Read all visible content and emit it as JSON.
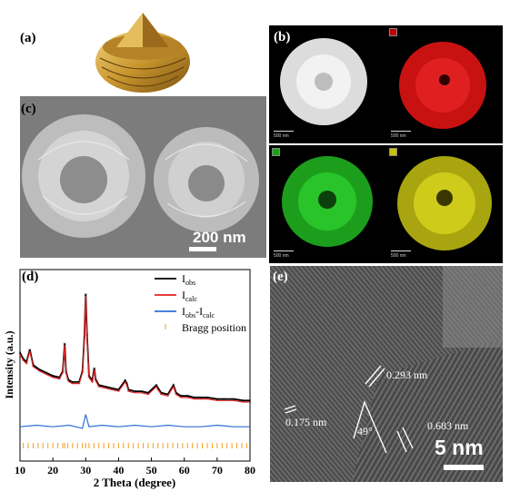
{
  "panels": {
    "a": {
      "label": "(a)"
    },
    "b": {
      "label": "(b)",
      "maps": [
        {
          "tag_color": "#c00000",
          "color": "#d81616",
          "scale": "500 nm"
        },
        {
          "tag_color": "#c00000",
          "color": "#d81616",
          "scale": "500 nm"
        },
        {
          "tag_color": "#14a614",
          "color": "#22b822",
          "scale": "500 nm"
        },
        {
          "tag_color": "#c8c400",
          "color": "#cfcb1a",
          "scale": "500 nm"
        }
      ]
    },
    "c": {
      "label": "(c)",
      "scale_bar": "200 nm"
    },
    "d": {
      "label": "(d)"
    },
    "e": {
      "label": "(e)",
      "scale_bar": "5 nm",
      "annotations": [
        "0.293 nm",
        "0.175 nm",
        "49°",
        "0.683 nm"
      ]
    }
  },
  "chart_data": {
    "type": "line",
    "xlabel": "2 Theta (degree)",
    "ylabel": "Intensity (a.u.)",
    "xlim": [
      10,
      80
    ],
    "xticks": [
      10,
      20,
      30,
      40,
      50,
      60,
      70,
      80
    ],
    "yticks_shown": false,
    "legend_position": "top-right",
    "series": [
      {
        "name": "I_obs",
        "name_main": "I",
        "name_sub": "obs",
        "color": "#000000",
        "marker": "x",
        "x": [
          10,
          11,
          12,
          13,
          14,
          16,
          18,
          20,
          22,
          23,
          23.6,
          24,
          24.6,
          25,
          26,
          28,
          29,
          29.6,
          30.0,
          30.4,
          31,
          32,
          32.6,
          33,
          34,
          36,
          38,
          40,
          42,
          42.5,
          43,
          45,
          47,
          49,
          51.5,
          52,
          53,
          55,
          56.7,
          57.5,
          59,
          61,
          63,
          65,
          67,
          70,
          72,
          75,
          78,
          80
        ],
        "y": [
          0.62,
          0.58,
          0.56,
          0.64,
          0.54,
          0.51,
          0.49,
          0.47,
          0.46,
          0.5,
          0.68,
          0.5,
          0.45,
          0.44,
          0.43,
          0.43,
          0.5,
          0.72,
          1.0,
          0.74,
          0.47,
          0.44,
          0.52,
          0.45,
          0.41,
          0.4,
          0.39,
          0.38,
          0.44,
          0.42,
          0.38,
          0.37,
          0.37,
          0.36,
          0.41,
          0.39,
          0.36,
          0.35,
          0.41,
          0.36,
          0.34,
          0.34,
          0.33,
          0.33,
          0.33,
          0.32,
          0.32,
          0.32,
          0.31,
          0.31
        ]
      },
      {
        "name": "I_calc",
        "name_main": "I",
        "name_sub": "calc",
        "color": "#e02020",
        "x": [
          10,
          11,
          12,
          13,
          14,
          16,
          18,
          20,
          22,
          23,
          23.6,
          24,
          24.6,
          25,
          26,
          28,
          29,
          29.6,
          30.0,
          30.4,
          31,
          32,
          32.6,
          33,
          34,
          36,
          38,
          40,
          42,
          42.5,
          43,
          45,
          47,
          49,
          51.5,
          52,
          53,
          55,
          56.7,
          57.5,
          59,
          61,
          63,
          65,
          67,
          70,
          72,
          75,
          78,
          80
        ],
        "y": [
          0.61,
          0.57,
          0.55,
          0.63,
          0.53,
          0.5,
          0.48,
          0.46,
          0.45,
          0.49,
          0.67,
          0.49,
          0.44,
          0.43,
          0.42,
          0.42,
          0.49,
          0.71,
          0.99,
          0.73,
          0.46,
          0.43,
          0.51,
          0.44,
          0.4,
          0.39,
          0.38,
          0.37,
          0.43,
          0.41,
          0.37,
          0.36,
          0.36,
          0.35,
          0.4,
          0.38,
          0.35,
          0.34,
          0.4,
          0.35,
          0.33,
          0.33,
          0.32,
          0.32,
          0.32,
          0.31,
          0.31,
          0.31,
          0.3,
          0.3
        ]
      },
      {
        "name": "I_obs-I_calc",
        "name_main": "I",
        "name_sub": "obs",
        "name_mid": "-I",
        "name_sub2": "calc",
        "color": "#2f6fd6",
        "x": [
          10,
          15,
          20,
          25,
          29,
          30,
          31,
          35,
          40,
          45,
          50,
          55,
          60,
          65,
          70,
          75,
          80
        ],
        "y": [
          0.14,
          0.15,
          0.14,
          0.15,
          0.13,
          0.22,
          0.14,
          0.15,
          0.14,
          0.15,
          0.14,
          0.15,
          0.14,
          0.14,
          0.15,
          0.14,
          0.14
        ]
      }
    ],
    "bragg": {
      "name": "Bragg position",
      "color": "#f39c1e",
      "x": [
        11,
        12.5,
        14,
        15.5,
        17,
        18.5,
        20,
        21.5,
        23,
        23.6,
        24.5,
        26,
        27.5,
        29,
        30,
        31,
        32.5,
        34,
        35.5,
        37,
        38.5,
        40,
        41.5,
        43,
        44.5,
        46,
        47.5,
        49,
        50.5,
        52,
        53.5,
        55,
        56.5,
        58,
        59.5,
        61,
        62.5,
        64,
        65.5,
        67,
        68.5,
        70,
        71.5,
        73,
        74.5,
        76,
        77.5,
        79
      ]
    }
  }
}
